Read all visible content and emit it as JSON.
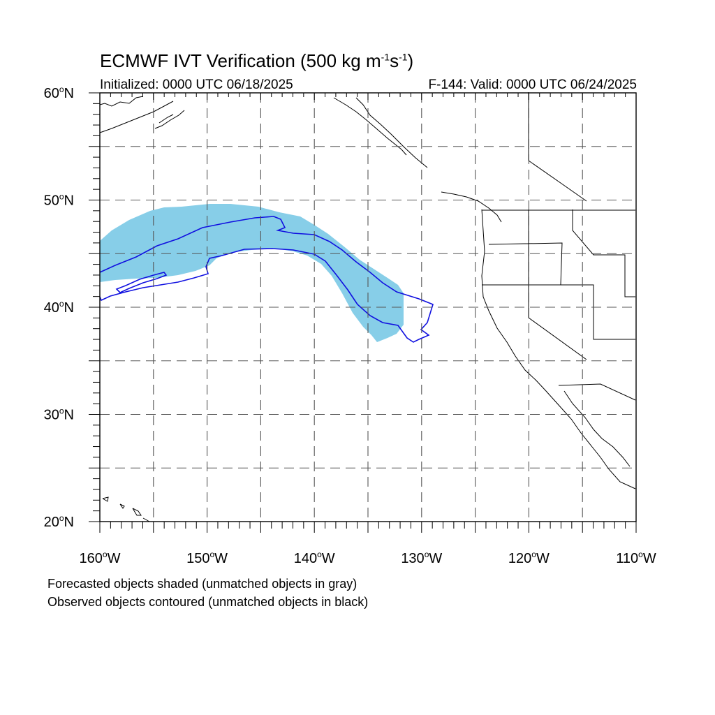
{
  "title": {
    "main": "ECMWF IVT Verification (500 kg m",
    "exp1": "-1",
    "mid": "s",
    "exp2": "-1",
    "end": ")"
  },
  "subtitle": {
    "initialized": "Initialized: 0000 UTC 06/18/2025",
    "valid": "F-144: Valid: 0000 UTC 06/24/2025"
  },
  "footnotes": [
    "Forecasted objects shaded (unmatched objects in gray)",
    "Observed objects contoured (unmatched objects in black)"
  ],
  "map": {
    "lon_range": [
      -160,
      -110
    ],
    "lat_range": [
      20,
      60
    ],
    "grid_style": "dashed",
    "lon_labels": [
      {
        "lon": -160,
        "num": "160",
        "deg": "o",
        "hem": "W"
      },
      {
        "lon": -150,
        "num": "150",
        "deg": "o",
        "hem": "W"
      },
      {
        "lon": -140,
        "num": "140",
        "deg": "o",
        "hem": "W"
      },
      {
        "lon": -130,
        "num": "130",
        "deg": "o",
        "hem": "W"
      },
      {
        "lon": -120,
        "num": "120",
        "deg": "o",
        "hem": "W"
      },
      {
        "lon": -110,
        "num": "110",
        "deg": "o",
        "hem": "W"
      }
    ],
    "lat_labels": [
      {
        "lat": 60,
        "num": "60",
        "deg": "o",
        "hem": "N"
      },
      {
        "lat": 50,
        "num": "50",
        "deg": "o",
        "hem": "N"
      },
      {
        "lat": 40,
        "num": "40",
        "deg": "o",
        "hem": "N"
      },
      {
        "lat": 30,
        "num": "30",
        "deg": "o",
        "hem": "N"
      },
      {
        "lat": 20,
        "num": "20",
        "deg": "o",
        "hem": "N"
      }
    ],
    "colors": {
      "forecast_fill": "#87cee8",
      "observed_contour": "#1010e0",
      "coastline": "#000000",
      "grid": "#555555"
    }
  }
}
